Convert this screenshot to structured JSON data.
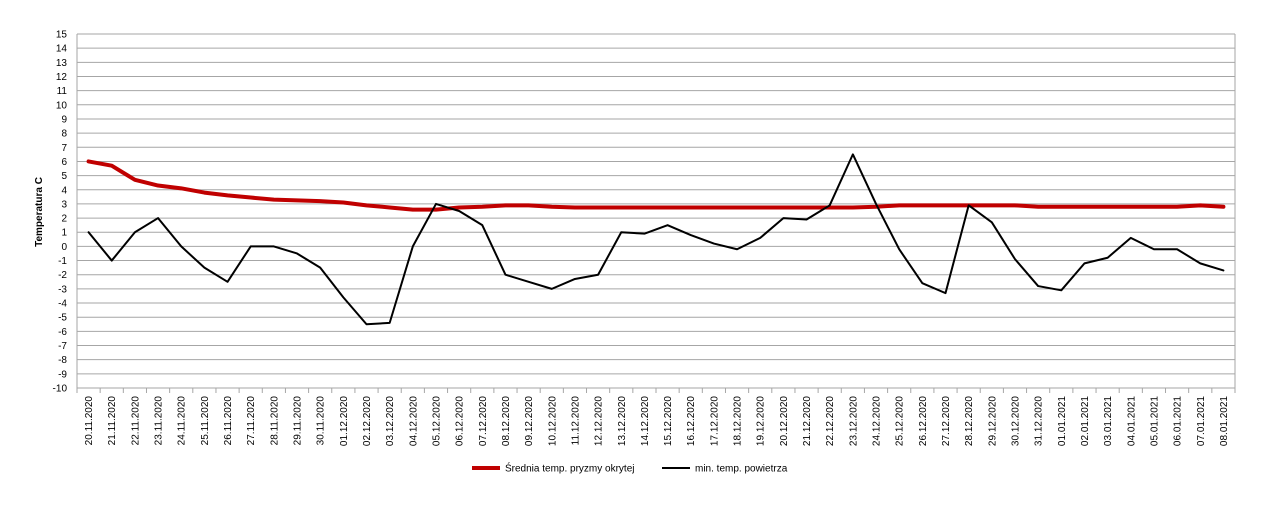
{
  "chart_data": {
    "type": "line",
    "ylabel": "Temperatura C",
    "xlabel": "",
    "ylim": [
      -10,
      15
    ],
    "ytick_step": 1,
    "grid": true,
    "legend_position": "bottom",
    "categories": [
      "20.11.2020",
      "21.11.2020",
      "22.11.2020",
      "23.11.2020",
      "24.11.2020",
      "25.11.2020",
      "26.11.2020",
      "27.11.2020",
      "28.11.2020",
      "29.11.2020",
      "30.11.2020",
      "01.12.2020",
      "02.12.2020",
      "03.12.2020",
      "04.12.2020",
      "05.12.2020",
      "06.12.2020",
      "07.12.2020",
      "08.12.2020",
      "09.12.2020",
      "10.12.2020",
      "11.12.2020",
      "12.12.2020",
      "13.12.2020",
      "14.12.2020",
      "15.12.2020",
      "16.12.2020",
      "17.12.2020",
      "18.12.2020",
      "19.12.2020",
      "20.12.2020",
      "21.12.2020",
      "22.12.2020",
      "23.12.2020",
      "24.12.2020",
      "25.12.2020",
      "26.12.2020",
      "27.12.2020",
      "28.12.2020",
      "29.12.2020",
      "30.12.2020",
      "31.12.2020",
      "01.01.2021",
      "02.01.2021",
      "03.01.2021",
      "04.01.2021",
      "05.01.2021",
      "06.01.2021",
      "07.01.2021",
      "08.01.2021"
    ],
    "series": [
      {
        "name": "Średnia temp. pryzmy okrytej",
        "color": "#c00000",
        "values": [
          6.0,
          5.7,
          4.7,
          4.3,
          4.1,
          3.8,
          3.6,
          3.45,
          3.3,
          3.25,
          3.2,
          3.1,
          2.9,
          2.75,
          2.6,
          2.6,
          2.75,
          2.8,
          2.9,
          2.9,
          2.8,
          2.75,
          2.75,
          2.75,
          2.75,
          2.75,
          2.75,
          2.75,
          2.75,
          2.75,
          2.75,
          2.75,
          2.75,
          2.75,
          2.8,
          2.9,
          2.9,
          2.9,
          2.9,
          2.9,
          2.9,
          2.8,
          2.8,
          2.8,
          2.8,
          2.8,
          2.8,
          2.8,
          2.9,
          2.8
        ]
      },
      {
        "name": "min. temp. powietrza",
        "color": "#000000",
        "values": [
          1.0,
          -1.0,
          1.0,
          2.0,
          0.0,
          -1.5,
          -2.5,
          0.0,
          0.0,
          -0.5,
          -1.5,
          -3.6,
          -5.5,
          -5.4,
          0.0,
          3.0,
          2.5,
          1.5,
          -2.0,
          -2.5,
          -3.0,
          -2.3,
          -2.0,
          1.0,
          0.9,
          1.5,
          0.8,
          0.2,
          -0.2,
          0.6,
          2.0,
          1.9,
          2.9,
          6.5,
          3.0,
          -0.2,
          -2.6,
          -3.3,
          2.9,
          1.7,
          -0.9,
          -2.8,
          -3.1,
          -1.2,
          -0.8,
          0.6,
          -0.2,
          -0.2,
          -1.2,
          -1.7
        ]
      }
    ]
  }
}
